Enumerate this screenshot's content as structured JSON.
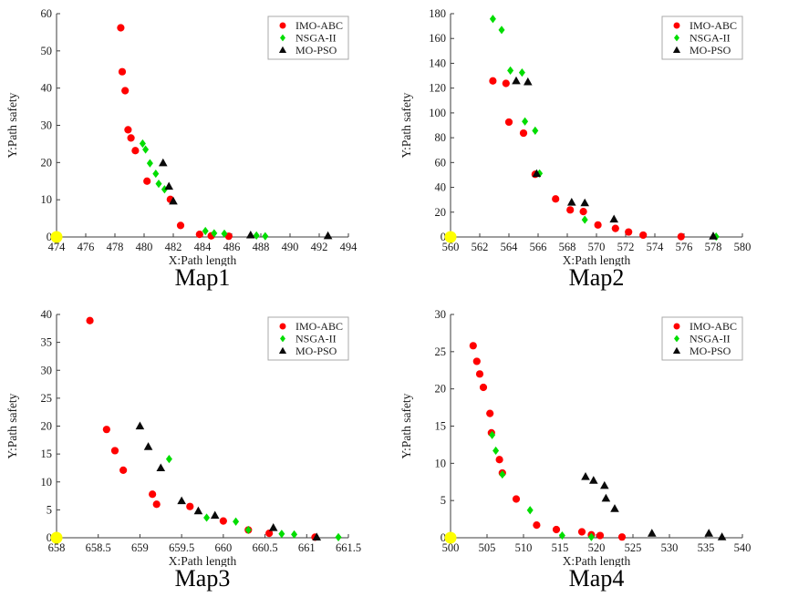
{
  "figure": {
    "background": "#ffffff",
    "axis_color": "#3c3c3c",
    "text_color": "#1a1a1a",
    "legend_border_color": "#a9a9a9"
  },
  "chart_data": [
    {
      "type": "scatter",
      "title": "Map1",
      "xlabel": "X:Path length",
      "ylabel": "Y:Path safety",
      "xlim": [
        474,
        494
      ],
      "ylim": [
        0,
        60
      ],
      "xticks": [
        474,
        476,
        478,
        480,
        482,
        484,
        486,
        488,
        490,
        492,
        494
      ],
      "yticks": [
        0,
        10,
        20,
        30,
        40,
        50,
        60
      ],
      "grid": false,
      "legend_position": "top-right",
      "series": [
        {
          "name": "IMO-ABC",
          "marker": "circle",
          "color": "#ff0000",
          "points": [
            [
              478.4,
              56.2
            ],
            [
              478.5,
              44.4
            ],
            [
              478.7,
              39.3
            ],
            [
              478.9,
              28.8
            ],
            [
              479.1,
              26.6
            ],
            [
              479.4,
              23.2
            ],
            [
              480.2,
              15.0
            ],
            [
              481.8,
              10.1
            ],
            [
              482.5,
              3.1
            ],
            [
              483.8,
              0.7
            ],
            [
              484.6,
              0.3
            ],
            [
              485.8,
              0.2
            ]
          ]
        },
        {
          "name": "NSGA-II",
          "marker": "diamond",
          "color": "#00dd00",
          "points": [
            [
              479.9,
              25.1
            ],
            [
              480.1,
              23.5
            ],
            [
              480.4,
              19.8
            ],
            [
              480.8,
              17.0
            ],
            [
              481.0,
              14.3
            ],
            [
              481.4,
              12.8
            ],
            [
              484.2,
              1.6
            ],
            [
              484.8,
              1.0
            ],
            [
              485.5,
              0.9
            ],
            [
              487.7,
              0.4
            ],
            [
              488.3,
              0.2
            ]
          ]
        },
        {
          "name": "MO-PSO",
          "marker": "triangle",
          "color": "#0a0a0a",
          "points": [
            [
              481.3,
              19.9
            ],
            [
              481.7,
              13.6
            ],
            [
              482.0,
              9.6
            ],
            [
              487.3,
              0.5
            ],
            [
              492.6,
              0.3
            ]
          ]
        }
      ],
      "start_point": {
        "x": 474,
        "y": 0,
        "color": "#ffff00"
      }
    },
    {
      "type": "scatter",
      "title": "Map2",
      "xlabel": "X:Path length",
      "ylabel": "Y:Path safety",
      "xlim": [
        560,
        580
      ],
      "ylim": [
        0,
        180
      ],
      "xticks": [
        560,
        562,
        564,
        566,
        568,
        570,
        572,
        574,
        576,
        578,
        580
      ],
      "yticks": [
        0,
        20,
        40,
        60,
        80,
        100,
        120,
        140,
        160,
        180
      ],
      "grid": false,
      "legend_position": "top-right",
      "series": [
        {
          "name": "IMO-ABC",
          "marker": "circle",
          "color": "#ff0000",
          "points": [
            [
              562.9,
              125.8
            ],
            [
              563.8,
              123.8
            ],
            [
              564.0,
              92.6
            ],
            [
              565.0,
              83.7
            ],
            [
              565.8,
              50.5
            ],
            [
              567.2,
              30.7
            ],
            [
              568.2,
              21.8
            ],
            [
              569.1,
              20.5
            ],
            [
              570.1,
              9.7
            ],
            [
              571.3,
              6.9
            ],
            [
              572.2,
              4.0
            ],
            [
              573.2,
              1.5
            ],
            [
              575.8,
              0.3
            ]
          ]
        },
        {
          "name": "NSGA-II",
          "marker": "diamond",
          "color": "#00dd00",
          "points": [
            [
              562.9,
              175.8
            ],
            [
              563.5,
              166.9
            ],
            [
              564.1,
              134.2
            ],
            [
              564.9,
              132.5
            ],
            [
              565.1,
              93.1
            ],
            [
              565.8,
              85.7
            ],
            [
              566.1,
              51.2
            ],
            [
              569.2,
              13.9
            ],
            [
              578.2,
              0.3
            ]
          ]
        },
        {
          "name": "MO-PSO",
          "marker": "triangle",
          "color": "#0a0a0a",
          "points": [
            [
              564.5,
              125.8
            ],
            [
              565.3,
              125.0
            ],
            [
              565.9,
              51.0
            ],
            [
              568.3,
              27.9
            ],
            [
              569.2,
              27.4
            ],
            [
              571.2,
              14.3
            ],
            [
              578.0,
              0.6
            ]
          ]
        }
      ],
      "start_point": {
        "x": 560,
        "y": 0,
        "color": "#ffff00"
      }
    },
    {
      "type": "scatter",
      "title": "Map3",
      "xlabel": "X:Path length",
      "ylabel": "Y:Path safety",
      "xlim": [
        658,
        661.5
      ],
      "ylim": [
        0,
        40
      ],
      "xticks": [
        658,
        658.5,
        659,
        659.5,
        660,
        660.5,
        661,
        661.5
      ],
      "yticks": [
        0,
        5,
        10,
        15,
        20,
        25,
        30,
        35,
        40
      ],
      "grid": false,
      "legend_position": "top-right",
      "series": [
        {
          "name": "IMO-ABC",
          "marker": "circle",
          "color": "#ff0000",
          "points": [
            [
              658.4,
              38.9
            ],
            [
              658.6,
              19.4
            ],
            [
              658.7,
              15.6
            ],
            [
              658.8,
              12.1
            ],
            [
              659.15,
              7.8
            ],
            [
              659.2,
              6.0
            ],
            [
              659.6,
              5.6
            ],
            [
              660.0,
              3.0
            ],
            [
              660.3,
              1.4
            ],
            [
              660.55,
              0.8
            ],
            [
              661.1,
              0.1
            ]
          ]
        },
        {
          "name": "NSGA-II",
          "marker": "diamond",
          "color": "#00dd00",
          "points": [
            [
              659.35,
              14.1
            ],
            [
              659.8,
              3.6
            ],
            [
              660.15,
              2.9
            ],
            [
              660.3,
              1.4
            ],
            [
              660.7,
              0.7
            ],
            [
              660.85,
              0.6
            ],
            [
              661.38,
              0.1
            ]
          ]
        },
        {
          "name": "MO-PSO",
          "marker": "triangle",
          "color": "#0a0a0a",
          "points": [
            [
              659.0,
              20.0
            ],
            [
              659.1,
              16.3
            ],
            [
              659.25,
              12.5
            ],
            [
              659.5,
              6.6
            ],
            [
              659.7,
              4.8
            ],
            [
              659.9,
              4.0
            ],
            [
              660.6,
              1.8
            ],
            [
              661.12,
              0.1
            ]
          ]
        }
      ],
      "start_point": {
        "x": 658,
        "y": 0,
        "color": "#ffff00"
      }
    },
    {
      "type": "scatter",
      "title": "Map4",
      "xlabel": "X:Path length",
      "ylabel": "Y:Path safety",
      "xlim": [
        500,
        540
      ],
      "ylim": [
        0,
        30
      ],
      "xticks": [
        500,
        505,
        510,
        515,
        520,
        525,
        530,
        535,
        540
      ],
      "yticks": [
        0,
        5,
        10,
        15,
        20,
        25,
        30
      ],
      "grid": false,
      "legend_position": "top-right",
      "series": [
        {
          "name": "IMO-ABC",
          "marker": "circle",
          "color": "#ff0000",
          "points": [
            [
              503.1,
              25.8
            ],
            [
              503.6,
              23.7
            ],
            [
              504.0,
              22.0
            ],
            [
              504.5,
              20.2
            ],
            [
              505.4,
              16.7
            ],
            [
              505.6,
              14.1
            ],
            [
              506.7,
              10.5
            ],
            [
              507.1,
              8.7
            ],
            [
              509.0,
              5.2
            ],
            [
              511.8,
              1.7
            ],
            [
              514.5,
              1.1
            ],
            [
              518.0,
              0.8
            ],
            [
              519.3,
              0.4
            ],
            [
              520.5,
              0.3
            ],
            [
              523.5,
              0.1
            ]
          ]
        },
        {
          "name": "NSGA-II",
          "marker": "diamond",
          "color": "#00dd00",
          "points": [
            [
              505.7,
              13.8
            ],
            [
              506.2,
              11.7
            ],
            [
              507.1,
              8.5
            ],
            [
              510.9,
              3.7
            ],
            [
              515.3,
              0.3
            ],
            [
              519.3,
              0.1
            ]
          ]
        },
        {
          "name": "MO-PSO",
          "marker": "triangle",
          "color": "#0a0a0a",
          "points": [
            [
              518.5,
              8.2
            ],
            [
              519.6,
              7.7
            ],
            [
              521.1,
              7.0
            ],
            [
              521.3,
              5.3
            ],
            [
              522.5,
              3.9
            ],
            [
              527.6,
              0.6
            ],
            [
              535.4,
              0.6
            ],
            [
              537.2,
              0.1
            ]
          ]
        }
      ],
      "start_point": {
        "x": 500,
        "y": 0,
        "color": "#ffff00"
      }
    }
  ]
}
